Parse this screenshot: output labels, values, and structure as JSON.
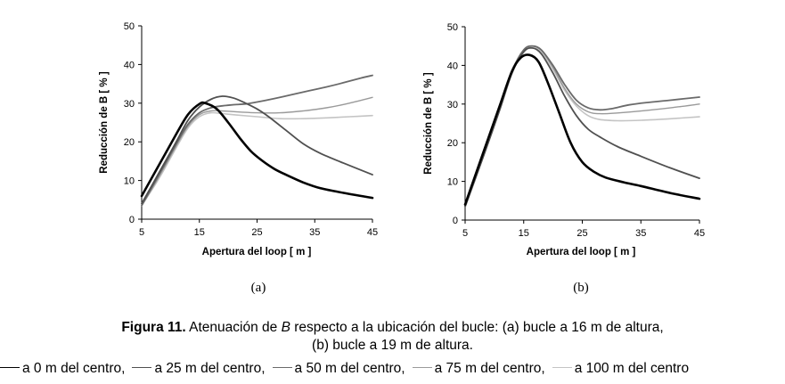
{
  "chart_data": [
    {
      "type": "line",
      "panel_label": "(a)",
      "xlabel": "Apertura del loop [ m ]",
      "ylabel": "Reducción de B [ % ]",
      "xlim": [
        5,
        45
      ],
      "ylim": [
        0,
        50
      ],
      "xticks": [
        5,
        15,
        25,
        35,
        45
      ],
      "yticks": [
        0,
        10,
        20,
        30,
        40,
        50
      ],
      "grid": false,
      "series": [
        {
          "name": "a 0 m del centro",
          "color": "#000000",
          "x": [
            5,
            8,
            11,
            13,
            15,
            16,
            18,
            20,
            22,
            24,
            26,
            28,
            30,
            33,
            36,
            40,
            45
          ],
          "y": [
            6,
            14,
            22,
            27,
            29.8,
            30,
            28.5,
            25,
            21,
            17.5,
            15,
            13,
            11.5,
            9.5,
            8,
            6.8,
            5.5
          ]
        },
        {
          "name": "a 25 m del centro",
          "color": "#505050",
          "x": [
            5,
            8,
            11,
            13,
            15,
            17,
            19,
            21,
            23,
            25,
            27,
            30,
            33,
            36,
            40,
            45
          ],
          "y": [
            4,
            12,
            20,
            25.5,
            29,
            31,
            31.8,
            31.3,
            30,
            28.5,
            26.5,
            23,
            19.5,
            17,
            14.5,
            11.5
          ]
        },
        {
          "name": "a 50 m del centro",
          "color": "#6a6a6a",
          "x": [
            5,
            8,
            11,
            13,
            15,
            17,
            19,
            21,
            23,
            25,
            28,
            31,
            34,
            37,
            40,
            43,
            45
          ],
          "y": [
            3.5,
            11.5,
            19.5,
            24.5,
            27.5,
            28.8,
            29.3,
            29.6,
            29.8,
            30.3,
            31.2,
            32.2,
            33.2,
            34.2,
            35.3,
            36.5,
            37.2
          ]
        },
        {
          "name": "a 75 m del centro",
          "color": "#9a9a9a",
          "x": [
            5,
            8,
            11,
            13,
            15,
            17,
            19,
            21,
            25,
            29,
            33,
            37,
            41,
            45
          ],
          "y": [
            3.5,
            11,
            19,
            24,
            27,
            28,
            28,
            27.8,
            27.5,
            27.5,
            28,
            28.8,
            30,
            31.5
          ]
        },
        {
          "name": "a 100 m del centro",
          "color": "#c4c4c4",
          "x": [
            5,
            8,
            11,
            13,
            15,
            17,
            19,
            21,
            25,
            29,
            33,
            37,
            41,
            45
          ],
          "y": [
            3.5,
            10.5,
            18.5,
            23.5,
            26.5,
            27.5,
            27.3,
            27,
            26.5,
            26,
            26,
            26.2,
            26.5,
            26.8
          ]
        }
      ]
    },
    {
      "type": "line",
      "panel_label": "(b)",
      "xlabel": "Apertura del loop [ m ]",
      "ylabel": "Reducción de B [ % ]",
      "xlim": [
        5,
        45
      ],
      "ylim": [
        0,
        50
      ],
      "xticks": [
        5,
        15,
        25,
        35,
        45
      ],
      "yticks": [
        0,
        10,
        20,
        30,
        40,
        50
      ],
      "grid": false,
      "series": [
        {
          "name": "a 0 m del centro",
          "color": "#000000",
          "x": [
            5,
            8,
            11,
            13,
            14.5,
            16,
            17.5,
            19,
            21,
            23,
            25,
            27,
            29,
            32,
            35,
            40,
            45
          ],
          "y": [
            4,
            17,
            30,
            38.5,
            42,
            42.7,
            41,
            36,
            28,
            20,
            15,
            12.5,
            11,
            9.8,
            8.8,
            7,
            5.5
          ]
        },
        {
          "name": "a 25 m del centro",
          "color": "#505050",
          "x": [
            5,
            8,
            11,
            13,
            15,
            16.5,
            18,
            20,
            22,
            24,
            26,
            28,
            31,
            35,
            40,
            45
          ],
          "y": [
            3.5,
            16,
            29,
            38,
            43.5,
            44.5,
            43,
            38,
            32,
            27,
            23.5,
            21.5,
            19,
            16.5,
            13.5,
            10.8
          ]
        },
        {
          "name": "a 50 m del centro",
          "color": "#6a6a6a",
          "x": [
            5,
            8,
            11,
            13,
            15,
            16.5,
            18,
            20,
            22,
            24,
            26,
            28,
            30,
            33,
            36,
            40,
            45
          ],
          "y": [
            3.5,
            16,
            29,
            38.5,
            44,
            45,
            44,
            40,
            35,
            31,
            29,
            28.5,
            28.8,
            29.8,
            30.4,
            31,
            31.8
          ]
        },
        {
          "name": "a 75 m del centro",
          "color": "#9a9a9a",
          "x": [
            5,
            8,
            11,
            13,
            15,
            16.5,
            18,
            20,
            22,
            24,
            26,
            28,
            31,
            35,
            40,
            45
          ],
          "y": [
            3.5,
            16,
            29,
            38.5,
            44,
            45,
            44,
            39.5,
            34,
            30,
            28,
            27.5,
            27.7,
            28.2,
            29,
            30
          ]
        },
        {
          "name": "a 100 m del centro",
          "color": "#c4c4c4",
          "x": [
            5,
            8,
            11,
            13,
            15,
            16.5,
            18,
            20,
            22,
            24,
            26,
            28,
            31,
            35,
            40,
            45
          ],
          "y": [
            3.5,
            16,
            29,
            38,
            43.5,
            44.5,
            43.5,
            39,
            33.5,
            29.5,
            27,
            26,
            25.7,
            25.8,
            26.2,
            26.7
          ]
        }
      ]
    }
  ],
  "caption": {
    "figure_label": "Figura 11.",
    "text_1": " Atenuación de ",
    "text_italic": "B",
    "text_2": " respecto a la ubicación del bucle: (a) bucle a 16 m de altura,",
    "line_2": "(b) bucle a 19 m de altura."
  },
  "legend": [
    {
      "label": "a 0 m del centro,",
      "color": "#000000"
    },
    {
      "label": "a 25 m del centro,",
      "color": "#505050"
    },
    {
      "label": "a 50 m del centro,",
      "color": "#6a6a6a"
    },
    {
      "label": "a 75 m del centro,",
      "color": "#9a9a9a"
    },
    {
      "label": "a 100 m del centro",
      "color": "#c4c4c4"
    }
  ]
}
